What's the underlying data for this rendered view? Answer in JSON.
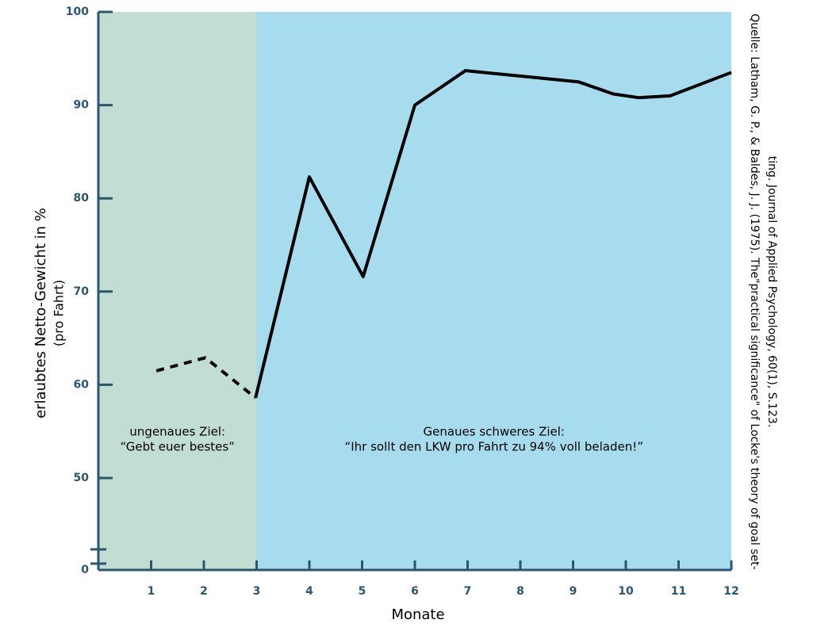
{
  "chart_data": {
    "type": "line",
    "y_label": [
      "erlaubtes Netto-Gewicht in %",
      "(pro Fahrt)"
    ],
    "x_label": "Monate",
    "source": [
      "Quelle: Latham, G. P., & Baldes, J. J. (1975). The\"practical significance\" of Locke's theory of goal set-",
      "ting. Journal of Applied Psychology, 60(1), S.123."
    ],
    "xlim": [
      0,
      12
    ],
    "xticks": [
      1,
      2,
      3,
      4,
      5,
      6,
      7,
      8,
      9,
      10,
      11,
      12
    ],
    "ylim": [
      0,
      100
    ],
    "yticks": [
      0,
      50,
      60,
      70,
      80,
      90,
      100
    ],
    "axis_break": [
      0,
      50
    ],
    "regions": [
      {
        "from": 0,
        "to": 3,
        "color": "#c2ddd1",
        "label": [
          "ungenaues Ziel:",
          "“Gebt euer bestes”"
        ]
      },
      {
        "from": 3,
        "to": 12,
        "color": "#a7dcef",
        "label": [
          "Genaues schweres Ziel:",
          "“Ihr sollt den LKW pro Fahrt zu 94% voll beladen!”"
        ]
      }
    ],
    "series": [
      {
        "color": "#000000",
        "dashed": true,
        "x": [
          1.1,
          2.03,
          2.98
        ],
        "values": [
          61.5,
          62.9,
          58.6
        ]
      },
      {
        "color": "#000000",
        "dashed": false,
        "x": [
          2.98,
          4.0,
          5.02,
          6.0,
          6.96,
          9.1,
          9.76,
          10.24,
          10.84,
          12.0
        ],
        "values": [
          58.6,
          82.3,
          71.6,
          90.0,
          93.7,
          92.5,
          91.2,
          90.8,
          91.0,
          93.5
        ]
      }
    ]
  }
}
